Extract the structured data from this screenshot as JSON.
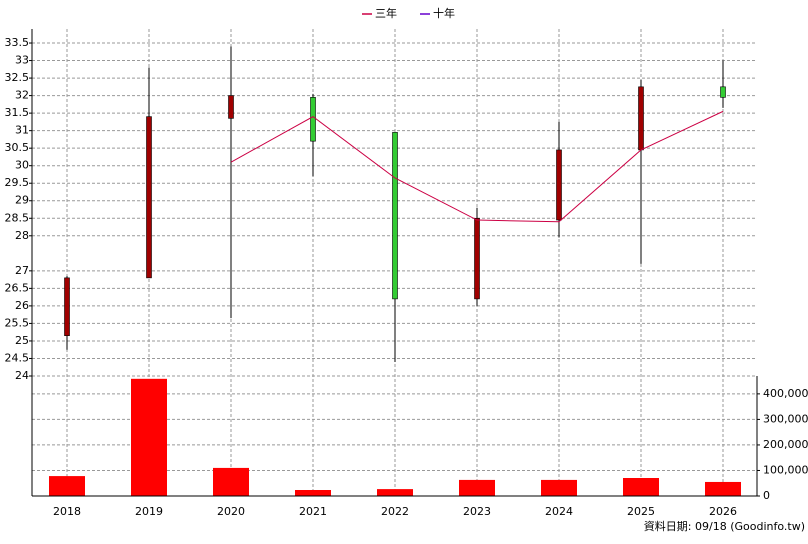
{
  "chart_data": [
    {
      "type": "candlestick",
      "categories": [
        "2018",
        "2019",
        "2020",
        "2021",
        "2022",
        "2023",
        "2024",
        "2025",
        "2026"
      ],
      "open": [
        25.15,
        26.8,
        31.35,
        31.95,
        30.95,
        26.2,
        28.45,
        30.45,
        32.25
      ],
      "high": [
        26.85,
        32.8,
        33.4,
        32.05,
        30.95,
        28.8,
        31.25,
        32.45,
        33.0
      ],
      "low": [
        24.75,
        26.8,
        25.65,
        29.7,
        24.4,
        26.0,
        27.95,
        27.2,
        31.65
      ],
      "close": [
        26.8,
        31.4,
        32.0,
        30.7,
        26.2,
        28.5,
        30.45,
        32.25,
        31.95
      ],
      "up_color": "#a00000",
      "down_color": "#33cc33",
      "ylim": [
        24,
        33.9
      ],
      "yticks": [
        24,
        24.5,
        25,
        25.5,
        26,
        26.5,
        27,
        28,
        28.5,
        29,
        29.5,
        30,
        30.5,
        31,
        31.5,
        32,
        32.5,
        33,
        33.5
      ],
      "grid": true,
      "series": [
        {
          "name": "三年",
          "color": "#cc0044",
          "values": [
            null,
            null,
            30.1,
            31.4,
            29.65,
            28.45,
            28.4,
            30.45,
            31.55
          ]
        },
        {
          "name": "十年",
          "color": "#6600cc",
          "values": [
            null,
            null,
            null,
            null,
            null,
            null,
            null,
            null,
            null
          ]
        }
      ]
    },
    {
      "type": "bar",
      "values": [
        78000,
        459000,
        110000,
        23500,
        27000,
        63000,
        63000,
        70500,
        55000
      ],
      "color": "#ff0000",
      "ylim": [
        0,
        470000
      ],
      "yticks": [
        0,
        {
          "value": 100000,
          "label": "100,000"
        },
        {
          "value": 200000,
          "label": "200,000"
        },
        {
          "value": 300000,
          "label": "300,000"
        },
        {
          "value": 400000,
          "label": "400,000"
        }
      ],
      "grid": true,
      "note": "資料日期: 09/18 (Goodinfo.tw)"
    }
  ]
}
